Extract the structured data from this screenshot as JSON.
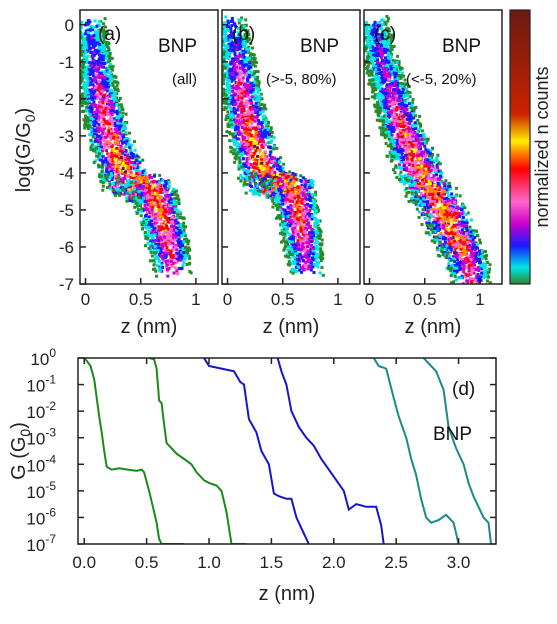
{
  "chart_data": [
    {
      "type": "heatmap",
      "panel_label": "(a)",
      "series_label": "BNP",
      "subset_label": "(all)",
      "ylabel_main": "log(G/G",
      "ylabel_sub": "0",
      "ylabel_end": ")",
      "xlabel": "z (nm)",
      "xlim": [
        -0.05,
        1.2
      ],
      "ylim": [
        -7,
        0.4
      ],
      "xticks": [
        0,
        0.5,
        1
      ],
      "xtick_labels": [
        "0",
        "0.5",
        "1"
      ],
      "yticks": [
        0,
        -1,
        -2,
        -3,
        -4,
        -5,
        -6,
        -7
      ],
      "ytick_labels": [
        "0",
        "-1",
        "-2",
        "-3",
        "-4",
        "-5",
        "-6",
        "-7"
      ],
      "ridges": [
        {
          "z": 0.02,
          "logG": 0.0,
          "dens": 0.3
        },
        {
          "z": 0.08,
          "logG": -1.0,
          "dens": 0.4
        },
        {
          "z": 0.12,
          "logG": -2.0,
          "dens": 0.6
        },
        {
          "z": 0.2,
          "logG": -3.0,
          "dens": 0.75
        },
        {
          "z": 0.35,
          "logG": -4.2,
          "dens": 1.0
        },
        {
          "z": 0.6,
          "logG": -4.5,
          "dens": 0.85
        },
        {
          "z": 0.7,
          "logG": -5.5,
          "dens": 0.8
        },
        {
          "z": 0.78,
          "logG": -6.5,
          "dens": 0.55
        }
      ]
    },
    {
      "type": "heatmap",
      "panel_label": "(b)",
      "series_label": "BNP",
      "subset_label": "(>-5, 80%)",
      "xlabel": "z (nm)",
      "xlim": [
        -0.05,
        1.2
      ],
      "ylim": [
        -7,
        0.4
      ],
      "xticks": [
        0,
        0.5,
        1
      ],
      "xtick_labels": [
        "0",
        "0.5",
        "1"
      ],
      "ridges": [
        {
          "z": 0.02,
          "logG": 0.0,
          "dens": 0.3
        },
        {
          "z": 0.08,
          "logG": -1.0,
          "dens": 0.45
        },
        {
          "z": 0.12,
          "logG": -2.0,
          "dens": 0.65
        },
        {
          "z": 0.2,
          "logG": -3.0,
          "dens": 0.8
        },
        {
          "z": 0.33,
          "logG": -4.2,
          "dens": 1.0
        },
        {
          "z": 0.58,
          "logG": -4.4,
          "dens": 0.9
        },
        {
          "z": 0.65,
          "logG": -5.5,
          "dens": 0.7
        },
        {
          "z": 0.7,
          "logG": -6.5,
          "dens": 0.45
        }
      ]
    },
    {
      "type": "heatmap",
      "panel_label": "(c)",
      "series_label": "BNP",
      "subset_label": "(<-5, 20%)",
      "xlabel": "z (nm)",
      "xlim": [
        -0.05,
        1.2
      ],
      "ylim": [
        -7,
        0.4
      ],
      "xticks": [
        0,
        0.5,
        1
      ],
      "xtick_labels": [
        "0",
        "0.5",
        "1"
      ],
      "ridges": [
        {
          "z": 0.02,
          "logG": 0.0,
          "dens": 0.3
        },
        {
          "z": 0.1,
          "logG": -1.0,
          "dens": 0.4
        },
        {
          "z": 0.2,
          "logG": -2.0,
          "dens": 0.55
        },
        {
          "z": 0.3,
          "logG": -3.0,
          "dens": 0.75
        },
        {
          "z": 0.45,
          "logG": -4.0,
          "dens": 0.85
        },
        {
          "z": 0.65,
          "logG": -5.0,
          "dens": 0.95
        },
        {
          "z": 0.8,
          "logG": -6.0,
          "dens": 0.85
        },
        {
          "z": 0.92,
          "logG": -6.8,
          "dens": 0.6
        }
      ]
    },
    {
      "type": "colorbar",
      "label": "normalized n counts",
      "colors": [
        "#2a8a2a",
        "#00e5e5",
        "#1a1aff",
        "#cc00cc",
        "#ff66cc",
        "#ff0000",
        "#ff8800",
        "#ffee00",
        "#6a1a10"
      ]
    },
    {
      "type": "line",
      "panel_label": "(d)",
      "series_label": "BNP",
      "xlabel": "z (nm)",
      "ylabel_main": "G (G",
      "ylabel_sub": "0",
      "ylabel_end": ")",
      "xlim": [
        -0.05,
        3.3
      ],
      "ylim_log10": [
        -7,
        0
      ],
      "xticks": [
        0,
        0.5,
        1,
        1.5,
        2,
        2.5,
        3
      ],
      "xtick_labels": [
        "0.0",
        "0.5",
        "1.0",
        "1.5",
        "2.0",
        "2.5",
        "3.0"
      ],
      "ytick_labels": [
        "10",
        "10",
        "10",
        "10",
        "10",
        "10",
        "10",
        "10"
      ],
      "ytick_exponents": [
        "0",
        "-1",
        "-2",
        "-3",
        "-4",
        "-5",
        "-6",
        "-7"
      ],
      "series": [
        {
          "color": "#1a8a1a",
          "points": [
            [
              0.0,
              0.0
            ],
            [
              0.02,
              -0.1
            ],
            [
              0.05,
              -0.3
            ],
            [
              0.08,
              -0.8
            ],
            [
              0.1,
              -1.5
            ],
            [
              0.12,
              -2.2
            ],
            [
              0.14,
              -2.8
            ],
            [
              0.16,
              -3.5
            ],
            [
              0.18,
              -4.1
            ],
            [
              0.22,
              -4.2
            ],
            [
              0.28,
              -4.15
            ],
            [
              0.35,
              -4.2
            ],
            [
              0.42,
              -4.25
            ],
            [
              0.46,
              -4.2
            ],
            [
              0.48,
              -4.3
            ],
            [
              0.52,
              -5.0
            ],
            [
              0.55,
              -5.6
            ],
            [
              0.58,
              -6.2
            ],
            [
              0.6,
              -6.8
            ],
            [
              0.62,
              -7.0
            ],
            [
              0.8,
              -7.0
            ]
          ]
        },
        {
          "color": "#1a8a1a",
          "points": [
            [
              0.52,
              0.0
            ],
            [
              0.56,
              -0.05
            ],
            [
              0.58,
              -0.4
            ],
            [
              0.6,
              -1.6
            ],
            [
              0.62,
              -1.7
            ],
            [
              0.64,
              -2.5
            ],
            [
              0.66,
              -3.2
            ],
            [
              0.7,
              -3.4
            ],
            [
              0.74,
              -3.6
            ],
            [
              0.8,
              -3.8
            ],
            [
              0.86,
              -4.0
            ],
            [
              0.9,
              -4.3
            ],
            [
              0.96,
              -4.6
            ],
            [
              1.0,
              -4.7
            ],
            [
              1.06,
              -4.8
            ],
            [
              1.1,
              -5.0
            ],
            [
              1.14,
              -5.8
            ],
            [
              1.16,
              -6.4
            ],
            [
              1.18,
              -7.0
            ],
            [
              1.3,
              -7.0
            ]
          ]
        },
        {
          "color": "#1515cc",
          "points": [
            [
              0.96,
              0.0
            ],
            [
              1.0,
              -0.3
            ],
            [
              1.1,
              -0.4
            ],
            [
              1.2,
              -0.5
            ],
            [
              1.25,
              -0.9
            ],
            [
              1.28,
              -1.0
            ],
            [
              1.32,
              -2.3
            ],
            [
              1.38,
              -2.8
            ],
            [
              1.42,
              -3.5
            ],
            [
              1.48,
              -4.0
            ],
            [
              1.52,
              -5.1
            ],
            [
              1.56,
              -5.2
            ],
            [
              1.62,
              -5.3
            ],
            [
              1.66,
              -5.3
            ],
            [
              1.7,
              -6.0
            ],
            [
              1.74,
              -6.4
            ],
            [
              1.78,
              -6.8
            ],
            [
              1.8,
              -7.0
            ]
          ]
        },
        {
          "color": "#1515cc",
          "points": [
            [
              1.55,
              0.0
            ],
            [
              1.58,
              -0.5
            ],
            [
              1.62,
              -1.0
            ],
            [
              1.66,
              -2.0
            ],
            [
              1.72,
              -2.6
            ],
            [
              1.78,
              -3.0
            ],
            [
              1.84,
              -3.3
            ],
            [
              1.9,
              -3.8
            ],
            [
              1.96,
              -4.2
            ],
            [
              2.02,
              -4.6
            ],
            [
              2.08,
              -5.0
            ],
            [
              2.12,
              -5.7
            ],
            [
              2.18,
              -5.5
            ],
            [
              2.26,
              -5.6
            ],
            [
              2.34,
              -5.6
            ],
            [
              2.38,
              -6.3
            ],
            [
              2.4,
              -7.0
            ]
          ]
        },
        {
          "color": "#1a8a8a",
          "points": [
            [
              2.32,
              0.0
            ],
            [
              2.36,
              -0.3
            ],
            [
              2.42,
              -0.4
            ],
            [
              2.48,
              -1.5
            ],
            [
              2.52,
              -2.2
            ],
            [
              2.58,
              -3.0
            ],
            [
              2.62,
              -3.8
            ],
            [
              2.66,
              -4.4
            ],
            [
              2.7,
              -5.3
            ],
            [
              2.74,
              -6.0
            ],
            [
              2.78,
              -6.2
            ],
            [
              2.84,
              -6.1
            ],
            [
              2.9,
              -5.9
            ],
            [
              2.96,
              -6.2
            ],
            [
              3.0,
              -7.0
            ]
          ]
        },
        {
          "color": "#1a8a8a",
          "points": [
            [
              2.72,
              0.0
            ],
            [
              2.76,
              -0.2
            ],
            [
              2.82,
              -0.5
            ],
            [
              2.88,
              -1.2
            ],
            [
              2.92,
              -2.6
            ],
            [
              2.98,
              -3.4
            ],
            [
              3.04,
              -4.0
            ],
            [
              3.08,
              -4.7
            ],
            [
              3.12,
              -5.2
            ],
            [
              3.16,
              -5.6
            ],
            [
              3.2,
              -6.0
            ],
            [
              3.24,
              -6.2
            ],
            [
              3.26,
              -7.0
            ]
          ]
        }
      ]
    }
  ]
}
